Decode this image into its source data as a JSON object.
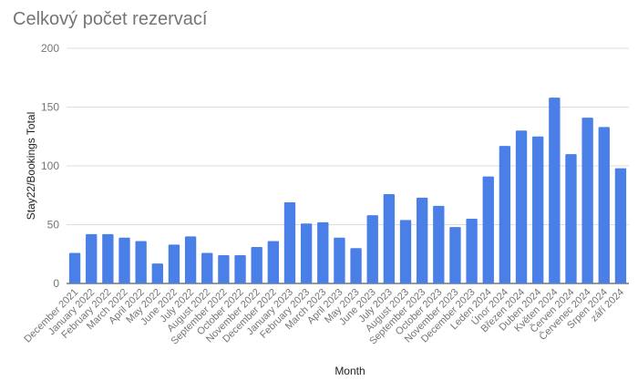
{
  "chart_data": {
    "type": "bar",
    "title": "Celkový počet rezervací",
    "xlabel": "Month",
    "ylabel": "Stay22/Bookings Total",
    "ylim": [
      0,
      200
    ],
    "yticks": [
      "0",
      "50",
      "100",
      "150",
      "200"
    ],
    "grid": true,
    "legend": "none",
    "color": "#4a7fe8",
    "categories": [
      "December 2021",
      "January 2022",
      "February 2022",
      "March 2022",
      "April 2022",
      "May 2022",
      "June 2022",
      "July 2022",
      "August 2022",
      "September 2022",
      "October 2022",
      "November 2022",
      "December 2022",
      "January 2023",
      "February 2023",
      "March 2023",
      "April 2023",
      "May 2023",
      "June 2023",
      "July 2023",
      "August 2023",
      "September 2023",
      "October 2023",
      "November 2023",
      "December 2023",
      "Leden 2024",
      "Únor 2024",
      "Březen 2024",
      "Duben 2024",
      "Květen 2024",
      "Červen 2024",
      "Červenec 2024",
      "Srpen 2024",
      "září 2024"
    ],
    "values": [
      26,
      42,
      42,
      39,
      36,
      17,
      33,
      40,
      26,
      24,
      24,
      31,
      36,
      69,
      51,
      52,
      39,
      30,
      58,
      76,
      54,
      73,
      66,
      48,
      55,
      91,
      117,
      130,
      125,
      158,
      110,
      141,
      133,
      98
    ]
  }
}
